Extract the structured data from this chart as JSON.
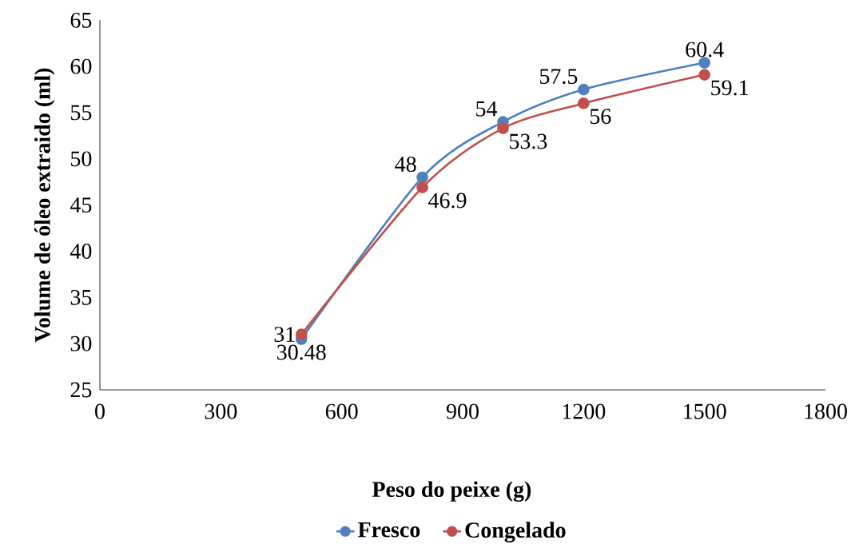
{
  "chart_data": {
    "type": "line",
    "xlabel": "Peso do peixe (g)",
    "ylabel": "Volume de óleo extraido (ml)",
    "x": [
      500,
      800,
      1000,
      1200,
      1500
    ],
    "series": [
      {
        "name": "Fresco",
        "color": "#4f81bd",
        "values": [
          30.48,
          48,
          54,
          57.5,
          60.4
        ]
      },
      {
        "name": "Congelado",
        "color": "#c0504d",
        "values": [
          31,
          46.9,
          53.3,
          56,
          59.1
        ]
      }
    ],
    "xlim": [
      0,
      1800
    ],
    "xticks": [
      0,
      300,
      600,
      900,
      1200,
      1500,
      1800
    ],
    "ylim": [
      25,
      65
    ],
    "yticks": [
      25,
      30,
      35,
      40,
      45,
      50,
      55,
      60,
      65
    ],
    "data_labels": true,
    "legend": "bottom",
    "grid": false,
    "marker": "circle",
    "line_style": "solid"
  }
}
